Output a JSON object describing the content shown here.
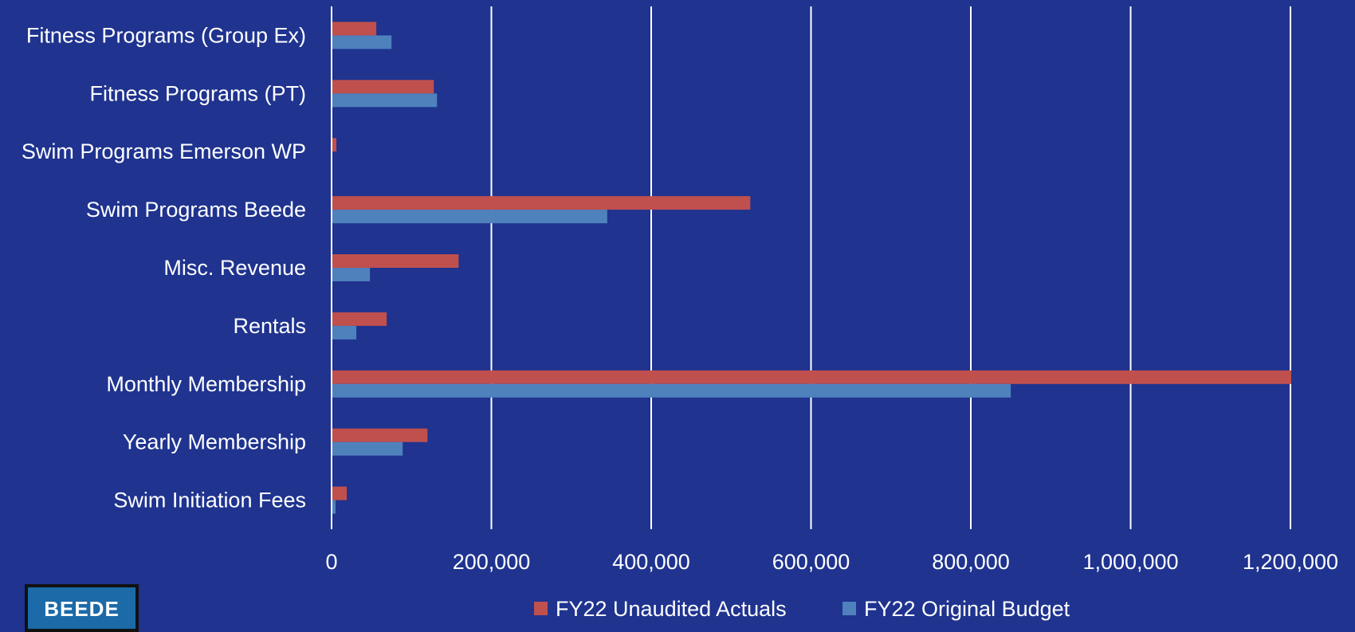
{
  "chart_data": {
    "type": "bar",
    "orientation": "horizontal",
    "categories": [
      "Fitness Programs (Group Ex)",
      "Fitness Programs (PT)",
      "Swim Programs Emerson WP",
      "Swim Programs Beede",
      "Misc. Revenue",
      "Rentals",
      "Monthly Membership",
      "Yearly Membership",
      "Swim Initiation Fees"
    ],
    "series": [
      {
        "name": "FY22 Unaudited Actuals",
        "color": "#c0504d",
        "values": [
          56000,
          128000,
          6000,
          524000,
          159000,
          69000,
          1201000,
          120000,
          19000
        ]
      },
      {
        "name": "FY22 Original Budget",
        "color": "#4f81bd",
        "values": [
          75000,
          132000,
          0,
          345000,
          48000,
          31000,
          850000,
          89000,
          5000
        ]
      }
    ],
    "xlim": [
      0,
      1200000
    ],
    "xticks": [
      "0",
      "200,000",
      "400,000",
      "600,000",
      "800,000",
      "1,000,000",
      "1,200,000"
    ],
    "xtick_values": [
      0,
      200000,
      400000,
      600000,
      800000,
      1000000,
      1200000
    ],
    "grid": "vertical",
    "legend_position": "bottom"
  },
  "logo": {
    "text": "BEEDE"
  },
  "colors": {
    "background": "#1f338f",
    "gridline": "#ffffff",
    "text": "#ffffff"
  }
}
